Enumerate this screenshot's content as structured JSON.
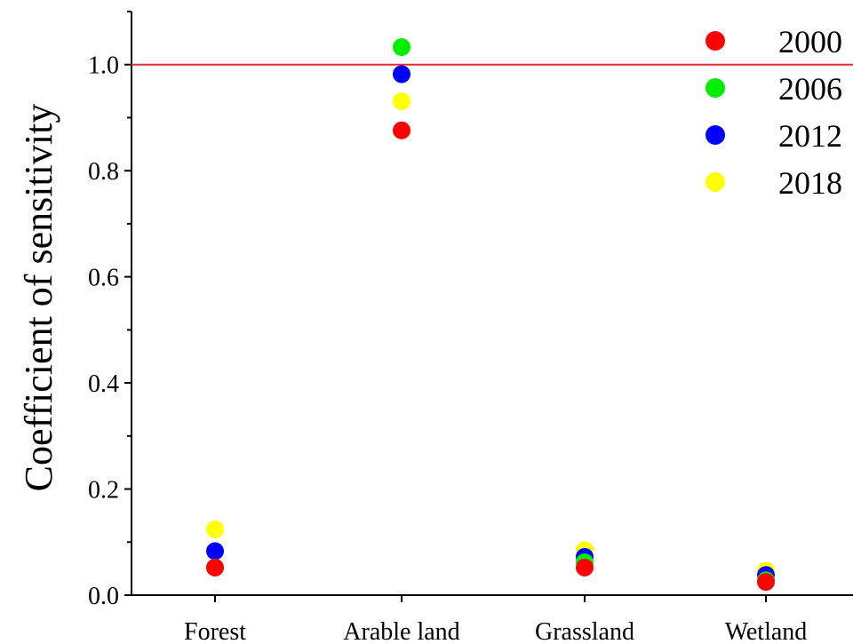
{
  "chart_data": {
    "type": "scatter",
    "categories": [
      "Forest",
      "Arable land",
      "Grassland",
      "Wetland"
    ],
    "series": [
      {
        "name": "2000",
        "color": "#ff0000",
        "values": [
          0.052,
          0.876,
          0.052,
          0.025
        ]
      },
      {
        "name": "2006",
        "color": "#00ee00",
        "values": [
          0.052,
          1.033,
          0.062,
          0.028
        ]
      },
      {
        "name": "2012",
        "color": "#0000ff",
        "values": [
          0.083,
          0.982,
          0.072,
          0.038
        ]
      },
      {
        "name": "2018",
        "color": "#ffff00",
        "values": [
          0.124,
          0.931,
          0.085,
          0.046
        ]
      }
    ],
    "ylabel": "Coefficient of sensitivity",
    "xlabel": "",
    "ylim": [
      0,
      1.1
    ],
    "yticks": [
      "0.0",
      "0.2",
      "0.4",
      "0.6",
      "0.8",
      "1.0"
    ],
    "reference_line": {
      "y": 1.0,
      "color": "#e03030"
    },
    "grid": false,
    "legend": "top-right"
  }
}
